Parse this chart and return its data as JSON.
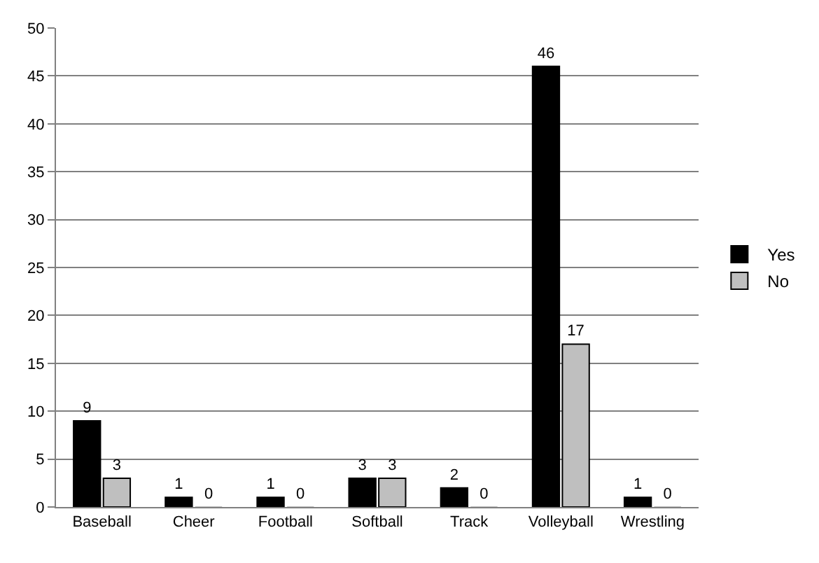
{
  "chart_data": {
    "type": "bar",
    "categories": [
      "Baseball",
      "Cheer",
      "Football",
      "Softball",
      "Track",
      "Volleyball",
      "Wrestling"
    ],
    "series": [
      {
        "name": "Yes",
        "color": "#000000",
        "values": [
          9,
          1,
          1,
          3,
          2,
          46,
          1
        ]
      },
      {
        "name": "No",
        "color": "#bfbfbf",
        "values": [
          3,
          0,
          0,
          3,
          0,
          17,
          0
        ]
      }
    ],
    "ylim": [
      0,
      50
    ],
    "yticks": [
      0,
      5,
      10,
      15,
      20,
      25,
      30,
      35,
      40,
      45,
      50
    ],
    "grid": "y",
    "legend": "right",
    "data_labels": true
  }
}
